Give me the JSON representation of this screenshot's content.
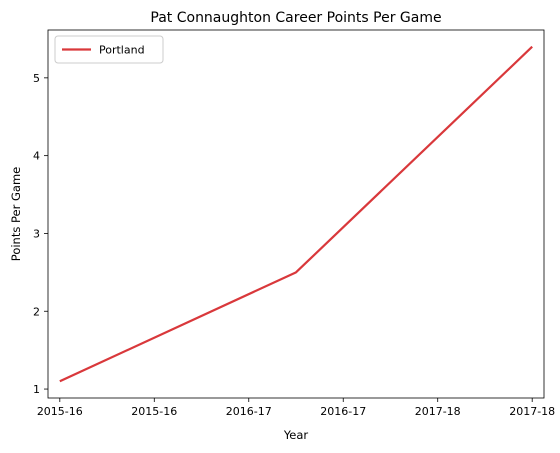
{
  "chart_data": {
    "type": "line",
    "title": "Pat Connaughton Career Points Per Game",
    "xlabel": "Year",
    "ylabel": "Points Per Game",
    "x": [
      0,
      1,
      2
    ],
    "x_tick_labels": [
      "2015-16",
      "2015-16",
      "2016-17",
      "2016-17",
      "2017-18",
      "2017-18"
    ],
    "xlim": [
      -0.05,
      2.05
    ],
    "ylim": [
      0.885,
      5.615
    ],
    "yticks": [
      1,
      2,
      3,
      4,
      5
    ],
    "series": [
      {
        "name": "Portland",
        "color": "#d9383b",
        "x": [
          0,
          1,
          2
        ],
        "y": [
          1.1,
          2.5,
          5.4
        ]
      }
    ],
    "legend": {
      "position": "top-left"
    },
    "grid": false
  }
}
